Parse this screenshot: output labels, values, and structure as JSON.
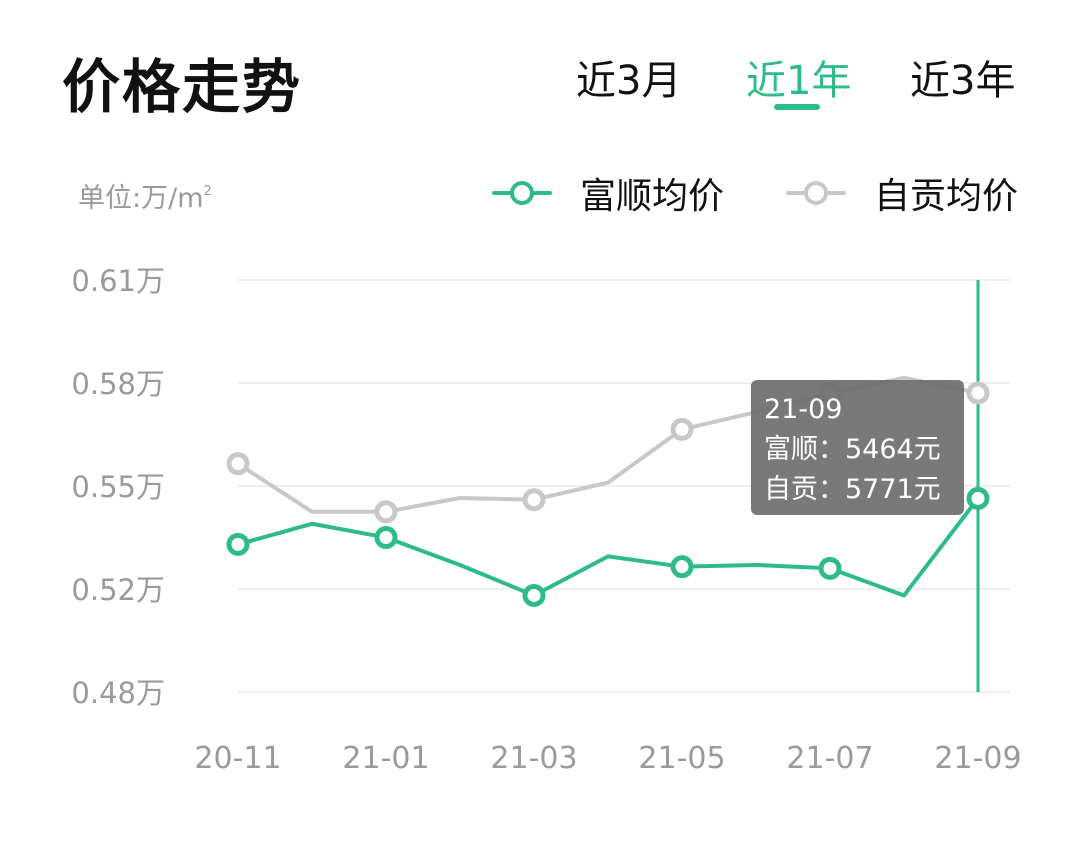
{
  "header": {
    "title": "价格走势",
    "tabs": [
      {
        "label": "近3月",
        "active": false
      },
      {
        "label": "近1年",
        "active": true
      },
      {
        "label": "近3年",
        "active": false
      }
    ]
  },
  "unit": {
    "prefix": "单位:万/m",
    "sup": "2"
  },
  "colors": {
    "series1": "#2dbc87",
    "series2": "#c8c8c8",
    "accent": "#2dbc87",
    "tooltip_bg": "#6f6f6f"
  },
  "chart_data": {
    "type": "line",
    "ylim": [
      0.48,
      0.61
    ],
    "ytick_values": [
      0.48,
      0.52,
      0.55,
      0.58,
      0.61
    ],
    "ytick_labels": [
      "0.48万",
      "0.52万",
      "0.55万",
      "0.58万",
      "0.61万"
    ],
    "x": [
      "20-11",
      "20-12",
      "21-01",
      "21-02",
      "21-03",
      "21-04",
      "21-05",
      "21-06",
      "21-07",
      "21-08",
      "21-09"
    ],
    "xtick_labels": [
      "20-11",
      "21-01",
      "21-03",
      "21-05",
      "21-07",
      "21-09"
    ],
    "grid": true,
    "legend_position": "top-right",
    "series": [
      {
        "name": "富顺均价",
        "color": "#2dbc87",
        "values": [
          0.533,
          0.539,
          0.535,
          0.527,
          0.5175,
          0.5295,
          0.5265,
          0.527,
          0.526,
          0.5175,
          0.5464
        ],
        "markers": [
          0,
          2,
          4,
          6,
          8,
          10
        ]
      },
      {
        "name": "自贡均价",
        "color": "#c8c8c8",
        "values": [
          0.5565,
          0.5425,
          0.5425,
          0.5465,
          0.546,
          0.551,
          0.5665,
          0.5715,
          0.577,
          0.5815,
          0.5771
        ],
        "markers": [
          0,
          2,
          4,
          6,
          8,
          10
        ]
      }
    ],
    "selected_index": 10,
    "tooltip": {
      "date": "21-09",
      "line1": "富顺：5464元",
      "line2": "自贡：5771元"
    }
  }
}
